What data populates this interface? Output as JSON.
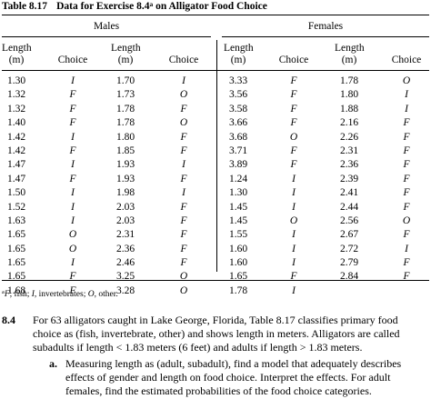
{
  "table": {
    "label": "Table 8.17",
    "title": "Data for Exercise 8.4",
    "title_footnote_mark": "a",
    "title_tail": " on Alligator Food Choice",
    "group_males": "Males",
    "group_females": "Females",
    "col_length_label": "Length",
    "col_length_unit": "(m)",
    "col_choice_label": "Choice",
    "columns": [
      {
        "length": [
          "1.30",
          "1.32",
          "1.32",
          "1.40",
          "1.42",
          "1.42",
          "1.47",
          "1.47",
          "1.50",
          "1.52",
          "1.63",
          "1.65",
          "1.65",
          "1.65",
          "1.65",
          "1.68"
        ],
        "choice": [
          "I",
          "F",
          "F",
          "F",
          "I",
          "F",
          "I",
          "F",
          "I",
          "I",
          "I",
          "O",
          "O",
          "I",
          "F",
          "F"
        ]
      },
      {
        "length": [
          "1.70",
          "1.73",
          "1.78",
          "1.78",
          "1.80",
          "1.85",
          "1.93",
          "1.93",
          "1.98",
          "2.03",
          "2.03",
          "2.31",
          "2.36",
          "2.46",
          "3.25",
          "3.28"
        ],
        "choice": [
          "I",
          "O",
          "F",
          "O",
          "F",
          "F",
          "I",
          "F",
          "I",
          "F",
          "F",
          "F",
          "F",
          "F",
          "O",
          "O"
        ]
      },
      {
        "length": [
          "3.33",
          "3.56",
          "3.58",
          "3.66",
          "3.68",
          "3.71",
          "3.89",
          "1.24",
          "1.30",
          "1.45",
          "1.45",
          "1.55",
          "1.60",
          "1.60",
          "1.65",
          "1.78"
        ],
        "choice": [
          "F",
          "F",
          "F",
          "F",
          "O",
          "F",
          "F",
          "I",
          "I",
          "I",
          "O",
          "I",
          "I",
          "I",
          "F",
          "I"
        ]
      },
      {
        "length": [
          "1.78",
          "1.80",
          "1.88",
          "2.16",
          "2.26",
          "2.31",
          "2.36",
          "2.39",
          "2.41",
          "2.44",
          "2.56",
          "2.67",
          "2.72",
          "2.79",
          "2.84"
        ],
        "choice": [
          "O",
          "I",
          "I",
          "F",
          "F",
          "F",
          "F",
          "F",
          "F",
          "F",
          "O",
          "F",
          "I",
          "F",
          "F"
        ]
      }
    ]
  },
  "footnote": {
    "mark": "a",
    "text_parts": [
      "F",
      ", fish; ",
      "I",
      ", invertebrates; ",
      "O",
      ", other."
    ]
  },
  "exercise": {
    "number": "8.4",
    "lines": [
      "For 63 alligators caught in Lake George, Florida, Table 8.17 classifies primary food",
      "choice as (fish, invertebrate, other) and shows length in meters. Alligators are called",
      "subadults if length < 1.83 meters (6 feet) and adults if length > 1.83 meters."
    ],
    "part_a": {
      "label": "a.",
      "lines": [
        "Measuring length as (adult, subadult), find a model that adequately describes",
        "effects of gender and length on food choice. Interpret the effects. For adult",
        "females, find the estimated probabilities of the food choice categories."
      ]
    }
  }
}
